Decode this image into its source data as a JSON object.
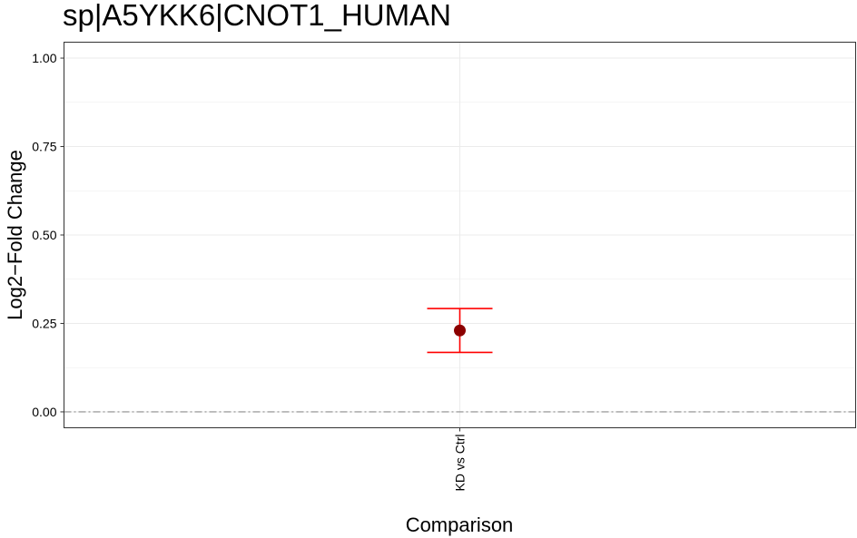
{
  "chart_data": {
    "type": "scatter",
    "title": "sp|A5YKK6|CNOT1_HUMAN",
    "xlabel": "Comparison",
    "ylabel": "Log2−Fold Change",
    "categories": [
      "KD vs Ctrl"
    ],
    "points": [
      {
        "category": "KD vs Ctrl",
        "value": 0.23,
        "ci_low": 0.168,
        "ci_high": 0.292
      }
    ],
    "ylim": [
      -0.045,
      1.045
    ],
    "yticks": [
      0,
      0.25,
      0.5,
      0.75,
      1
    ],
    "ytick_labels": [
      "0.00",
      "0.25",
      "0.50",
      "0.75",
      "1.00"
    ],
    "reference_line": 0,
    "grid": true,
    "colors": {
      "point": "#8b0000",
      "errorbar": "#ff0000",
      "reference_line": "#a0a0a0",
      "grid": "#ebebeb",
      "panel_border": "#333333"
    }
  }
}
